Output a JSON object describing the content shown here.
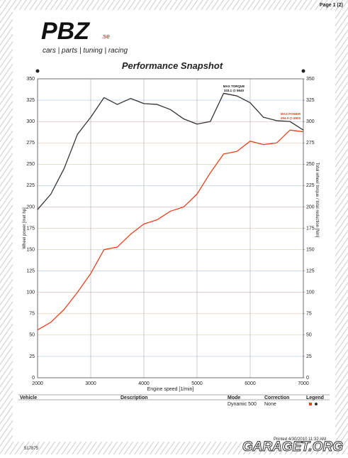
{
  "page": {
    "page_number": "Page 1 (2)",
    "logo": "PBZ",
    "logo_suffix": ".se",
    "tagline": "cars | parts | tuning | racing",
    "printed": "Printed 4/30/2010 11:32 AM",
    "footer_id": "517875",
    "watermark": "GARAGET.ORG"
  },
  "table": {
    "headers": [
      "Vehicle",
      "Description",
      "Mode",
      "Correction",
      "Legend"
    ],
    "row": {
      "mode": "Dynamic 500",
      "correction": "None"
    }
  },
  "chart_data": {
    "type": "line",
    "title": "Performance Snapshot",
    "x_label": "Engine speed [1/min]",
    "y_label": "Wheel power [met hp]",
    "y2_label": "Total wheel torque / total reduction [Nm]",
    "x": [
      2000,
      2250,
      2500,
      2750,
      3000,
      3250,
      3500,
      3750,
      4000,
      4250,
      4500,
      4750,
      5000,
      5250,
      5500,
      5750,
      6000,
      6250,
      6500,
      6750,
      7000
    ],
    "series": [
      {
        "name": "Wheel power",
        "color": "#e8401c",
        "axis": "y",
        "values": [
          56,
          65,
          80,
          100,
          122,
          150,
          153,
          168,
          180,
          185,
          195,
          200,
          215,
          240,
          262,
          265,
          277,
          273,
          275,
          290,
          288
        ]
      },
      {
        "name": "Wheel torque",
        "color": "#333333",
        "axis": "y2",
        "values": [
          197,
          215,
          245,
          285,
          305,
          328,
          320,
          327,
          321,
          320,
          314,
          303,
          297,
          300,
          333,
          330,
          322,
          305,
          301,
          300,
          290
        ]
      }
    ],
    "annotations": [
      "MAX TORQUE",
      "333.1 @ 5640",
      "MAX POWER",
      "294.0 @ 6900"
    ],
    "xlim": [
      2000,
      7000
    ],
    "xticks": [
      2000,
      3000,
      4000,
      5000,
      6000,
      7000
    ],
    "ylim": [
      0,
      350
    ],
    "yticks": [
      0,
      25,
      50,
      75,
      100,
      125,
      150,
      175,
      200,
      225,
      250,
      275,
      300,
      325,
      350
    ],
    "y2lim": [
      0,
      350
    ],
    "y2ticks": [
      0,
      25,
      50,
      75,
      100,
      125,
      150,
      175,
      200,
      225,
      250,
      275,
      300,
      325,
      350
    ],
    "grid": true
  }
}
